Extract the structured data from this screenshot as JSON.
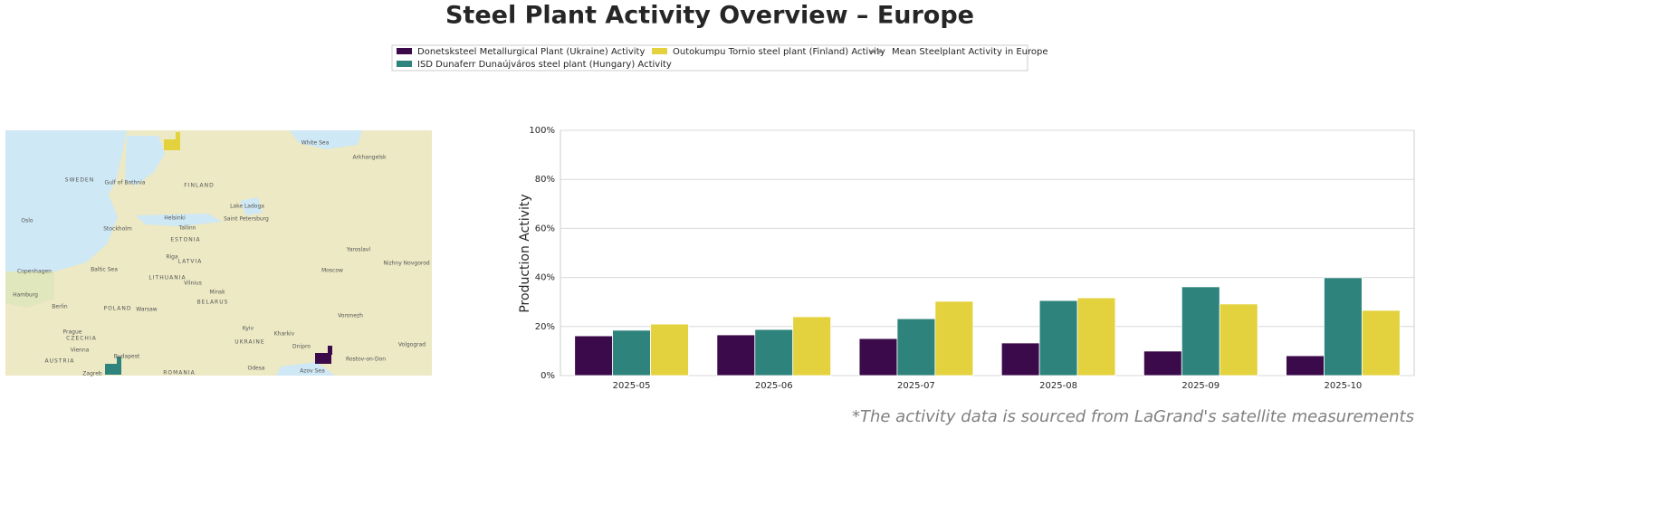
{
  "chart_data": {
    "type": "bar",
    "title": "Steel Plant Activity Overview – Europe",
    "ylabel": "Production Activity",
    "footnote": "*The activity data is sourced from LaGrand's satellite measurements",
    "categories": [
      "2025-05",
      "2025-06",
      "2025-07",
      "2025-08",
      "2025-09",
      "2025-10"
    ],
    "series": [
      {
        "name": "Donetsksteel Metallurgical Plant (Ukraine) Activity",
        "color": "#3b0a4a",
        "values": [
          16.2,
          16.6,
          15.1,
          13.3,
          10.0,
          8.1
        ]
      },
      {
        "name": "ISD Dunaferr Dunaújváros steel plant (Hungary) Activity",
        "color": "#2e837c",
        "values": [
          18.5,
          18.8,
          23.2,
          30.6,
          36.2,
          39.9
        ]
      },
      {
        "name": "Outokumpu Tornio steel plant (Finland) Activity",
        "color": "#e3d13d",
        "values": [
          21.0,
          24.0,
          30.3,
          31.7,
          29.2,
          26.6
        ]
      }
    ],
    "reference_line": {
      "name": "Mean Steelplant Activity in Europe",
      "color": "#808080",
      "style": "dashed"
    },
    "ylim": [
      0,
      100
    ],
    "yticks": [
      {
        "value": 0,
        "label": "0%"
      },
      {
        "value": 20,
        "label": "20%"
      },
      {
        "value": 40,
        "label": "40%"
      },
      {
        "value": 60,
        "label": "60%"
      },
      {
        "value": 80,
        "label": "80%"
      },
      {
        "value": 100,
        "label": "100%"
      }
    ],
    "grid": true,
    "legend": "top"
  },
  "map": {
    "labels": [
      "SWEDEN",
      "FINLAND",
      "White Sea",
      "Arkhangelsk",
      "Gulf of Bothnia",
      "Oslo",
      "Stockholm",
      "Helsinki",
      "Tallinn",
      "Saint Petersburg",
      "Lake Ladoga",
      "Yaroslavl",
      "Nizhny Novgorod",
      "Copenhagen",
      "Baltic Sea",
      "Riga",
      "LATVIA",
      "ESTONIA",
      "LITHUANIA",
      "Moscow",
      "Vilnius",
      "Hamburg",
      "Minsk",
      "Berlin",
      "POLAND",
      "BELARUS",
      "Warsaw",
      "Voronezh",
      "Kyiv",
      "Prague",
      "CZECHIA",
      "Kharkiv",
      "UKRAINE",
      "Vienna",
      "Budapest",
      "Dnipro",
      "Volgograd",
      "AUSTRIA",
      "Rostov-on-Don",
      "Odesa",
      "Azov Sea",
      "ROMANIA",
      "Zagreb"
    ]
  }
}
